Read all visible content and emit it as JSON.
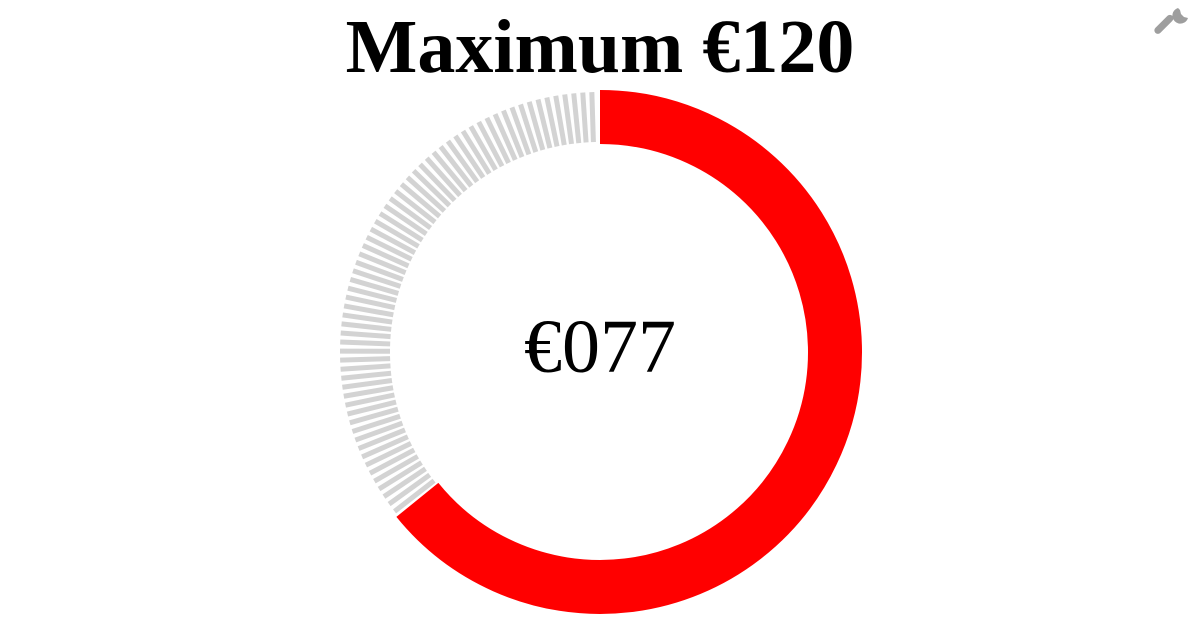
{
  "title": "Maximum €120",
  "value_label": "€077",
  "settings_icon": "wrench-icon",
  "colors": {
    "fill": "#ff0000",
    "track": "#d3d3d3",
    "text": "#000000",
    "icon": "#9e9e9e"
  },
  "chart_data": {
    "type": "gauge",
    "value": 77,
    "max": 120,
    "title": "Maximum €120",
    "value_label": "€077",
    "fill_direction": "clockwise-from-top",
    "remainder_style": "dashed-ticks"
  }
}
